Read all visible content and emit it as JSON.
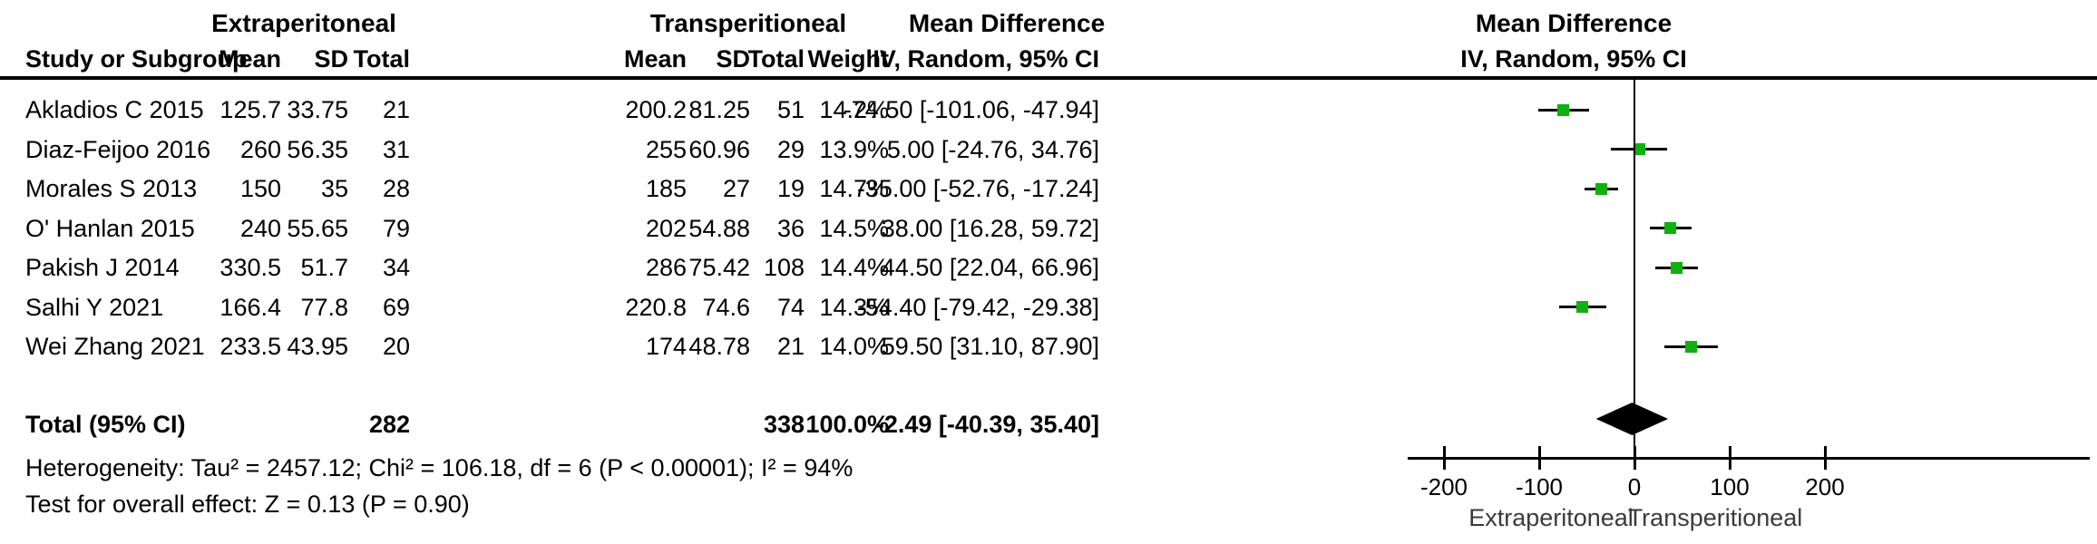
{
  "header": {
    "group1": "Extraperitoneal",
    "group2": "Transperitioneal",
    "md_title_line1": "Mean Difference",
    "md_title_line2": "IV, Random, 95% CI",
    "plot_title_line1": "Mean Difference",
    "plot_title_line2": "IV, Random, 95% CI",
    "columns": [
      "Study or Subgroup",
      "Mean",
      "SD",
      "Total",
      "Mean",
      "SD",
      "Total",
      "Weight",
      "IV, Random, 95% CI"
    ]
  },
  "chart_data": {
    "type": "forest",
    "effect_measure": "Mean Difference",
    "model": "IV, Random, 95% CI",
    "axis": {
      "ticks": [
        -200,
        -100,
        0,
        100,
        200
      ],
      "zero_line": 0
    },
    "axis_labels": {
      "left": "Extraperitoneal",
      "right": "Transperitioneal"
    },
    "studies": [
      {
        "name": "Akladios C 2015",
        "mean1": "125.7",
        "sd1": "33.75",
        "total1": "21",
        "mean2": "200.2",
        "sd2": "81.25",
        "total2": "51",
        "weight": "14.2%",
        "ci_text": "-74.50 [-101.06, -47.94]",
        "md": -74.5,
        "lo": -101.06,
        "hi": -47.94
      },
      {
        "name": "Diaz-Feijoo 2016",
        "mean1": "260",
        "sd1": "56.35",
        "total1": "31",
        "mean2": "255",
        "sd2": "60.96",
        "total2": "29",
        "weight": "13.9%",
        "ci_text": "5.00 [-24.76, 34.76]",
        "md": 5.0,
        "lo": -24.76,
        "hi": 34.76
      },
      {
        "name": "Morales S 2013",
        "mean1": "150",
        "sd1": "35",
        "total1": "28",
        "mean2": "185",
        "sd2": "27",
        "total2": "19",
        "weight": "14.7%",
        "ci_text": "-35.00 [-52.76, -17.24]",
        "md": -35.0,
        "lo": -52.76,
        "hi": -17.24
      },
      {
        "name": "O' Hanlan 2015",
        "mean1": "240",
        "sd1": "55.65",
        "total1": "79",
        "mean2": "202",
        "sd2": "54.88",
        "total2": "36",
        "weight": "14.5%",
        "ci_text": "38.00 [16.28, 59.72]",
        "md": 38.0,
        "lo": 16.28,
        "hi": 59.72
      },
      {
        "name": "Pakish J 2014",
        "mean1": "330.5",
        "sd1": "51.7",
        "total1": "34",
        "mean2": "286",
        "sd2": "75.42",
        "total2": "108",
        "weight": "14.4%",
        "ci_text": "44.50 [22.04, 66.96]",
        "md": 44.5,
        "lo": 22.04,
        "hi": 66.96
      },
      {
        "name": "Salhi Y 2021",
        "mean1": "166.4",
        "sd1": "77.8",
        "total1": "69",
        "mean2": "220.8",
        "sd2": "74.6",
        "total2": "74",
        "weight": "14.3%",
        "ci_text": "-54.40 [-79.42, -29.38]",
        "md": -54.4,
        "lo": -79.42,
        "hi": -29.38
      },
      {
        "name": "Wei Zhang 2021",
        "mean1": "233.5",
        "sd1": "43.95",
        "total1": "20",
        "mean2": "174",
        "sd2": "48.78",
        "total2": "21",
        "weight": "14.0%",
        "ci_text": "59.50 [31.10, 87.90]",
        "md": 59.5,
        "lo": 31.1,
        "hi": 87.9
      }
    ],
    "total": {
      "label": "Total (95% CI)",
      "total1": "282",
      "total2": "338",
      "weight": "100.0%",
      "ci_text": "-2.49 [-40.39, 35.40]",
      "md": -2.49,
      "lo": -40.39,
      "hi": 35.4
    }
  },
  "footer": {
    "heterogeneity": "Heterogeneity: Tau² = 2457.12; Chi² = 106.18, df = 6 (P < 0.00001); I² = 94%",
    "overall_effect": "Test for overall effect: Z = 0.13 (P = 0.90)"
  },
  "colors": {
    "square": "#10B010",
    "line": "#000000",
    "axis_label_text": "#3a3a3a"
  }
}
